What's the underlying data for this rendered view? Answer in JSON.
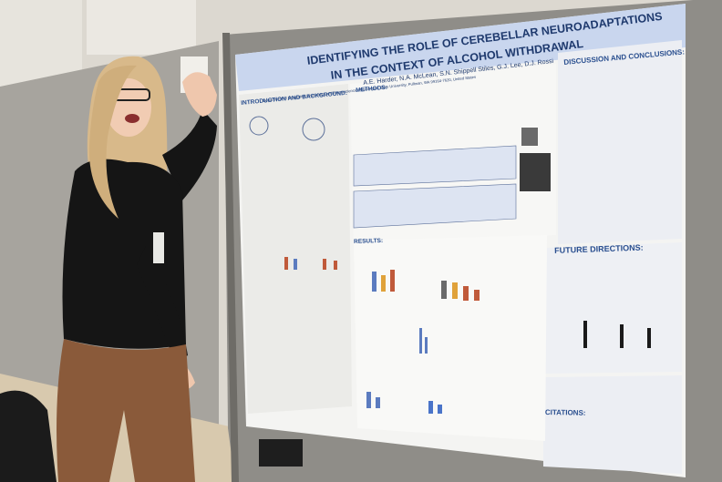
{
  "poster": {
    "title_line1": "IDENTIFYING THE ROLE OF CEREBELLAR NEUROADAPTATIONS",
    "title_line2": "IN THE CONTEXT OF ALCOHOL WITHDRAWAL",
    "authors": "A.E. Harder, N.A. McLean, S.N. Shippell Stiles, G.J. Lee, D.J. Rossi",
    "affiliation": "Department of Integrative Physiology and Neuroscience, Washington State University, Pullman, WA 99164-7620, United States",
    "sections": {
      "intro": "INTRODUCTION AND BACKGROUND:",
      "methods": "METHODS:",
      "results": "RESULTS:",
      "discussion": "DISCUSSION AND CONCLUSIONS:",
      "future": "FUTURE DIRECTIONS:",
      "citations": "CITATIONS:"
    }
  },
  "colors": {
    "wall": "#d9d6cf",
    "board": "#8a8a86",
    "poster_bg": "#f4f4f2",
    "title_bar": "#c9d6ee",
    "accent_blue": "#2a4f8f",
    "sweater": "#151515",
    "pants": "#8a5a3a",
    "hair": "#d8b98a"
  }
}
